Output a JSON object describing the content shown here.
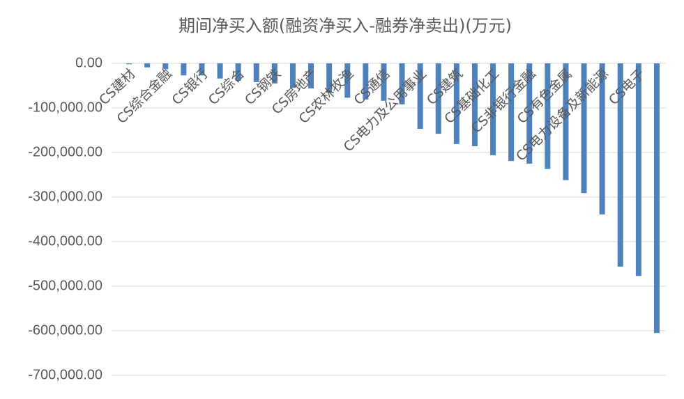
{
  "chart_data": {
    "type": "bar",
    "title": "期间净买入额(融资净买入-融券净卖出)(万元)",
    "categories": [
      "CS建材",
      null,
      "CS综合金融",
      null,
      "CS银行",
      null,
      "CS综合",
      null,
      "CS钢铁",
      null,
      "CS房地产",
      null,
      "CS农林牧渔",
      null,
      "CS通信",
      null,
      "CS电力及公用事业",
      null,
      "CS建筑",
      null,
      "CS基础化工",
      null,
      "CS非银行金融",
      null,
      "CS有色金属",
      null,
      "CS电力设备及新能源",
      null,
      "CS电子",
      null
    ],
    "values": [
      -2000,
      -9000,
      -13000,
      -27000,
      -27000,
      -34000,
      -39000,
      -42000,
      -45000,
      -55000,
      -56000,
      -66000,
      -77000,
      -81000,
      -84000,
      -92000,
      -147000,
      -158000,
      -181000,
      -186000,
      -206000,
      -219000,
      -225000,
      -237000,
      -262000,
      -291000,
      -339000,
      -456000,
      -477000,
      -605000
    ],
    "color": "#4f81bd",
    "ylim": [
      -700000,
      0
    ],
    "yticks": [
      {
        "value": 0,
        "label": "0.00"
      },
      {
        "value": -100000,
        "label": "-100,000.00"
      },
      {
        "value": -200000,
        "label": "-200,000.00"
      },
      {
        "value": -300000,
        "label": "-300,000.00"
      },
      {
        "value": -400000,
        "label": "-400,000.00"
      },
      {
        "value": -500000,
        "label": "-500,000.00"
      },
      {
        "value": -600000,
        "label": "-600,000.00"
      },
      {
        "value": -700000,
        "label": "-700,000.00"
      }
    ],
    "grid": true
  }
}
